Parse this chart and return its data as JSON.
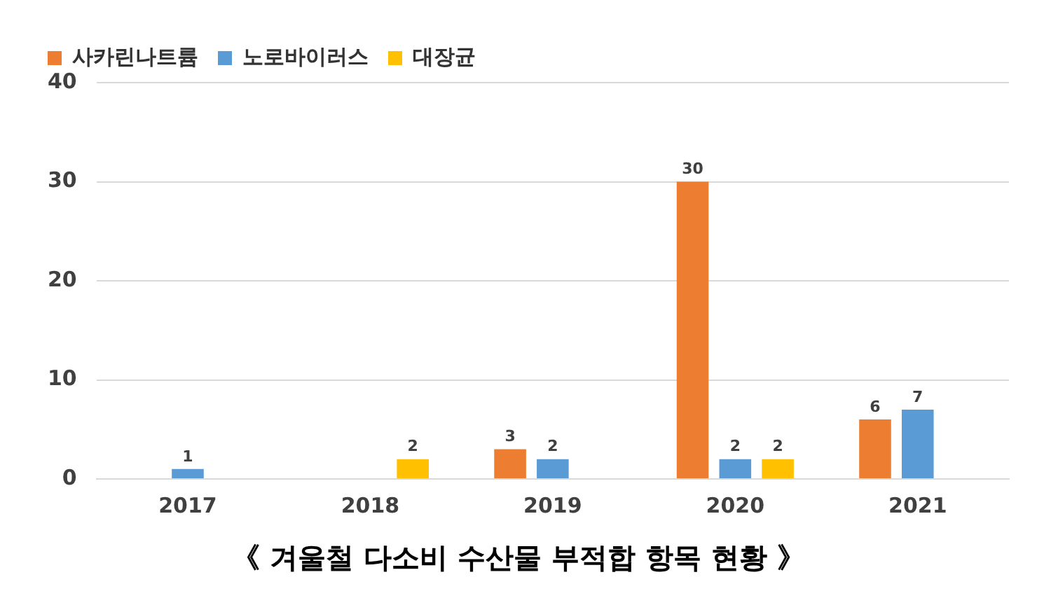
{
  "chart_data": {
    "type": "bar",
    "title": "《 겨울철 다소비 수산물 부적합 항목 현황 》",
    "categories": [
      "2017",
      "2018",
      "2019",
      "2020",
      "2021"
    ],
    "series": [
      {
        "name": "사카린나트륨",
        "color": "#ed7d31",
        "values": [
          0,
          0,
          3,
          30,
          6
        ],
        "value_labels": [
          null,
          null,
          "3",
          "30",
          "6"
        ]
      },
      {
        "name": "노로바이러스",
        "color": "#5b9bd5",
        "values": [
          1,
          0,
          2,
          2,
          7
        ],
        "value_labels": [
          "1",
          null,
          "2",
          "2",
          "7"
        ]
      },
      {
        "name": "대장균",
        "color": "#ffc000",
        "values": [
          0,
          2,
          0,
          2,
          0
        ],
        "value_labels": [
          null,
          "2",
          null,
          "2",
          null
        ]
      }
    ],
    "ylim": [
      0,
      40
    ],
    "yticks": [
      0,
      10,
      20,
      30,
      40
    ],
    "grid": "y",
    "legend": "top left"
  }
}
